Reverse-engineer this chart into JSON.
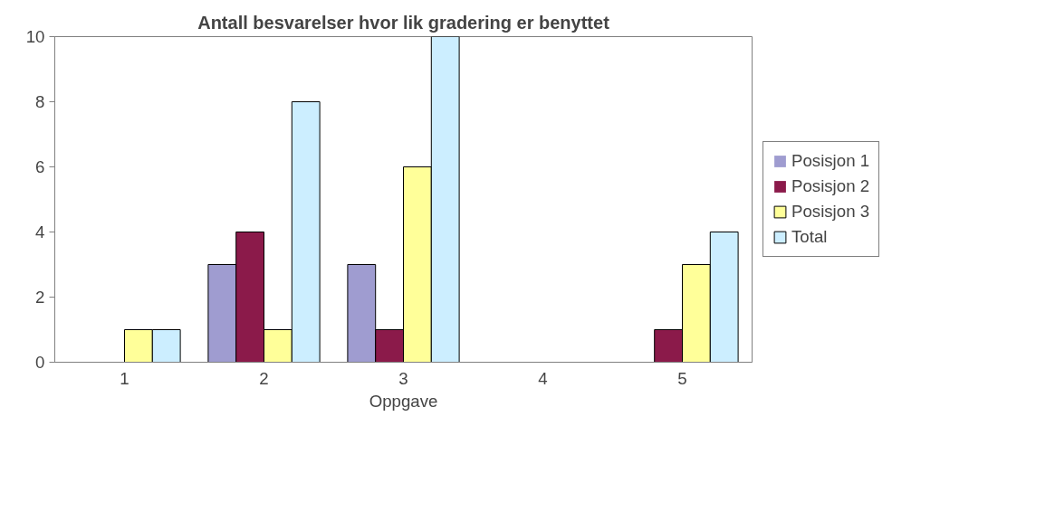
{
  "chart_data": {
    "type": "bar",
    "title": "Antall besvarelser hvor lik gradering er benyttet",
    "xlabel": "Oppgave",
    "categories": [
      "1",
      "2",
      "3",
      "4",
      "5"
    ],
    "series": [
      {
        "name": "Posisjon 1",
        "color": "#9f9cd0",
        "values": [
          0,
          3,
          3,
          0,
          0
        ]
      },
      {
        "name": "Posisjon 2",
        "color": "#8b1a4a",
        "values": [
          0,
          4,
          1,
          0,
          1
        ]
      },
      {
        "name": "Posisjon 3",
        "color": "#ffff99",
        "values": [
          1,
          1,
          6,
          0,
          3
        ]
      },
      {
        "name": "Total",
        "color": "#cceeff",
        "values": [
          1,
          8,
          10,
          0,
          4
        ]
      }
    ],
    "ylim": [
      0,
      10
    ],
    "yticks": [
      0,
      2,
      4,
      6,
      8,
      10
    ],
    "grid": false,
    "legend": "right"
  }
}
